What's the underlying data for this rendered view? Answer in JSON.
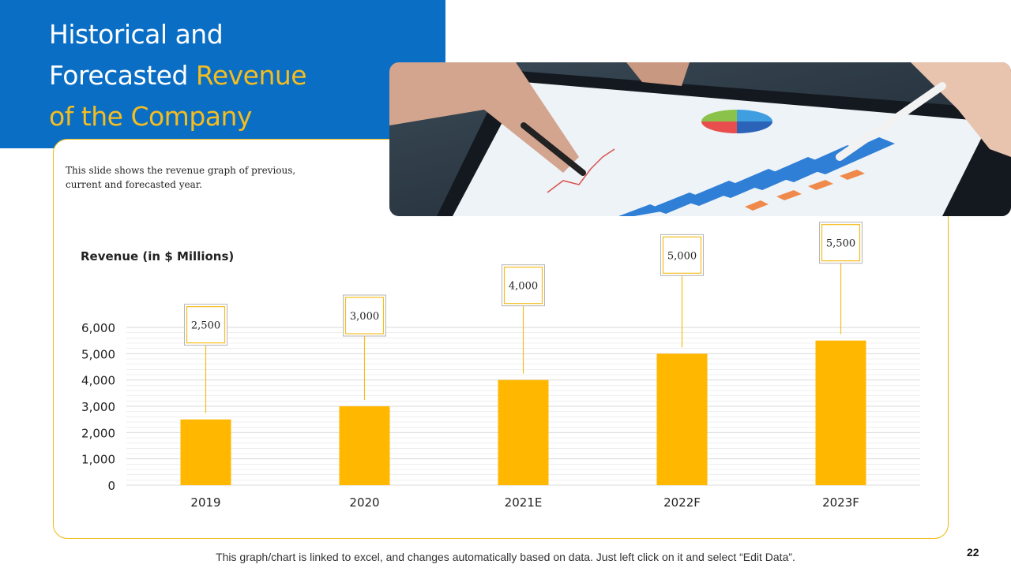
{
  "slide": {
    "title_line1": "Historical and",
    "title_line2_plain": "Forecasted ",
    "title_line2_accent": "Revenue",
    "title_line3_accent": "of the Company",
    "description": "This slide shows the revenue graph of previous, current and forecasted year.",
    "footer_note": "This graph/chart is linked to excel, and changes automatically based on data. Just left click on it and select “Edit Data”.",
    "page_number": "22"
  },
  "colors": {
    "title_bg": "#0a6ec4",
    "accent": "#f5bd1f",
    "bar": "#ffb700",
    "grid": "#d9d9d9"
  },
  "chart_data": {
    "type": "bar",
    "title": "Revenue  (in $ Millions)",
    "categories": [
      "2019",
      "2020",
      "2021E",
      "2022F",
      "2023F"
    ],
    "values": [
      2500,
      3000,
      4000,
      5000,
      5500
    ],
    "data_labels": [
      "2,500",
      "3,000",
      "4,000",
      "5,000",
      "5,500"
    ],
    "ylim": [
      0,
      6000
    ],
    "yticks": [
      0,
      1000,
      2000,
      3000,
      4000,
      5000,
      6000
    ],
    "ytick_labels": [
      "0",
      "1,000",
      "2,000",
      "3,000",
      "4,000",
      "5,000",
      "6,000"
    ],
    "xlabel": "",
    "ylabel": "",
    "grid": true
  }
}
